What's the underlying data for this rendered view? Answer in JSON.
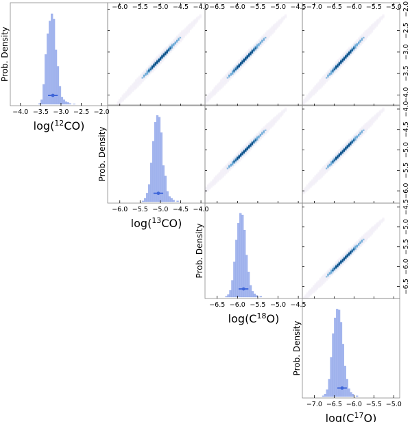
{
  "chart_data": {
    "type": "corner",
    "colors": {
      "hist": "#a4b6ee",
      "hist_edge": "#8ea3e6",
      "marker": "#3f66d9",
      "density_low": "#f3f0f8",
      "density_mid": "#6aa9d6",
      "density_high": "#0d4f86",
      "axis": "#888888"
    },
    "params": [
      {
        "key": "12co",
        "label_parts": [
          "log(",
          "12",
          "CO)"
        ],
        "range": [
          -4.25,
          -1.85
        ],
        "ticks": [
          -4.0,
          -3.5,
          -3.0,
          -2.5,
          -2.0
        ],
        "tick_labels": [
          "−4.0",
          "−3.5",
          "−3.0",
          "−2.5",
          "−2.0"
        ],
        "median": -3.2,
        "interval": [
          -3.32,
          -3.08
        ]
      },
      {
        "key": "13co",
        "label_parts": [
          "log(",
          "13",
          "CO)"
        ],
        "range": [
          -6.3,
          -3.9
        ],
        "ticks": [
          -6.0,
          -5.5,
          -5.0,
          -4.5,
          -4.0
        ],
        "tick_labels": [
          "−6.0",
          "−5.5",
          "−5.0",
          "−4.5",
          "−4.0"
        ],
        "median": -5.05,
        "interval": [
          -5.17,
          -4.93
        ]
      },
      {
        "key": "c18o",
        "label_parts": [
          "log(C",
          "18",
          "O)"
        ],
        "range": [
          -6.8,
          -4.4
        ],
        "ticks": [
          -6.5,
          -6.0,
          -5.5,
          -5.0,
          -4.5
        ],
        "tick_labels": [
          "−6.5",
          "−6.0",
          "−5.5",
          "−5.0",
          "−4.5"
        ],
        "median": -5.85,
        "interval": [
          -5.97,
          -5.73
        ]
      },
      {
        "key": "c17o",
        "label_parts": [
          "log(C",
          "17",
          "O)"
        ],
        "range": [
          -7.3,
          -4.85
        ],
        "ticks": [
          -7.0,
          -6.5,
          -6.0,
          -5.5,
          -5.0
        ],
        "tick_labels": [
          "−7.0",
          "−6.5",
          "−6.0",
          "−5.5",
          "−5.0"
        ],
        "median": -6.3,
        "interval": [
          -6.42,
          -6.18
        ]
      }
    ],
    "diag_ylabel": "Prob. Density",
    "histograms": [
      {
        "param": "12co",
        "bin_width": 0.05,
        "bins": [
          [
            -3.55,
            0.01
          ],
          [
            -3.5,
            0.05
          ],
          [
            -3.45,
            0.22
          ],
          [
            -3.4,
            0.55
          ],
          [
            -3.35,
            0.78
          ],
          [
            -3.3,
            0.92
          ],
          [
            -3.25,
            1.0
          ],
          [
            -3.2,
            0.94
          ],
          [
            -3.15,
            0.6
          ],
          [
            -3.1,
            0.42
          ],
          [
            -3.05,
            0.2
          ],
          [
            -3.0,
            0.08
          ],
          [
            -2.95,
            0.05
          ],
          [
            -2.9,
            0.03
          ],
          [
            -2.85,
            0.02
          ],
          [
            -2.8,
            0.01
          ],
          [
            -2.7,
            0.005
          ]
        ]
      },
      {
        "param": "13co",
        "bin_width": 0.05,
        "bins": [
          [
            -5.45,
            0.01
          ],
          [
            -5.4,
            0.04
          ],
          [
            -5.35,
            0.1
          ],
          [
            -5.3,
            0.2
          ],
          [
            -5.25,
            0.45
          ],
          [
            -5.2,
            0.7
          ],
          [
            -5.15,
            0.92
          ],
          [
            -5.1,
            1.0
          ],
          [
            -5.05,
            0.98
          ],
          [
            -5.0,
            0.8
          ],
          [
            -4.95,
            0.42
          ],
          [
            -4.9,
            0.3
          ],
          [
            -4.85,
            0.12
          ],
          [
            -4.8,
            0.06
          ],
          [
            -4.75,
            0.04
          ],
          [
            -4.7,
            0.02
          ],
          [
            -4.6,
            0.01
          ]
        ]
      },
      {
        "param": "c18o",
        "bin_width": 0.05,
        "bins": [
          [
            -6.3,
            0.01
          ],
          [
            -6.25,
            0.03
          ],
          [
            -6.2,
            0.08
          ],
          [
            -6.15,
            0.2
          ],
          [
            -6.1,
            0.42
          ],
          [
            -6.05,
            0.68
          ],
          [
            -6.0,
            0.88
          ],
          [
            -5.95,
            1.0
          ],
          [
            -5.9,
            0.98
          ],
          [
            -5.85,
            0.8
          ],
          [
            -5.8,
            0.5
          ],
          [
            -5.75,
            0.3
          ],
          [
            -5.7,
            0.14
          ],
          [
            -5.65,
            0.07
          ],
          [
            -5.6,
            0.04
          ],
          [
            -5.55,
            0.02
          ],
          [
            -5.45,
            0.01
          ]
        ]
      },
      {
        "param": "c17o",
        "bin_width": 0.05,
        "bins": [
          [
            -6.8,
            0.01
          ],
          [
            -6.75,
            0.03
          ],
          [
            -6.7,
            0.08
          ],
          [
            -6.65,
            0.2
          ],
          [
            -6.6,
            0.45
          ],
          [
            -6.55,
            0.72
          ],
          [
            -6.5,
            0.9
          ],
          [
            -6.45,
            1.0
          ],
          [
            -6.4,
            0.99
          ],
          [
            -6.35,
            0.85
          ],
          [
            -6.3,
            0.6
          ],
          [
            -6.25,
            0.35
          ],
          [
            -6.2,
            0.2
          ],
          [
            -6.15,
            0.09
          ],
          [
            -6.1,
            0.05
          ],
          [
            -6.05,
            0.03
          ],
          [
            -5.95,
            0.01
          ]
        ]
      }
    ],
    "joint_panels": [
      {
        "x": "13co",
        "y": "12co",
        "slope": 1.0
      },
      {
        "x": "c18o",
        "y": "12co",
        "slope": 1.0
      },
      {
        "x": "c17o",
        "y": "12co",
        "slope": 1.0
      },
      {
        "x": "c18o",
        "y": "13co",
        "slope": 1.0
      },
      {
        "x": "c17o",
        "y": "13co",
        "slope": 1.0
      },
      {
        "x": "c17o",
        "y": "c18o",
        "slope": 1.0
      }
    ]
  }
}
